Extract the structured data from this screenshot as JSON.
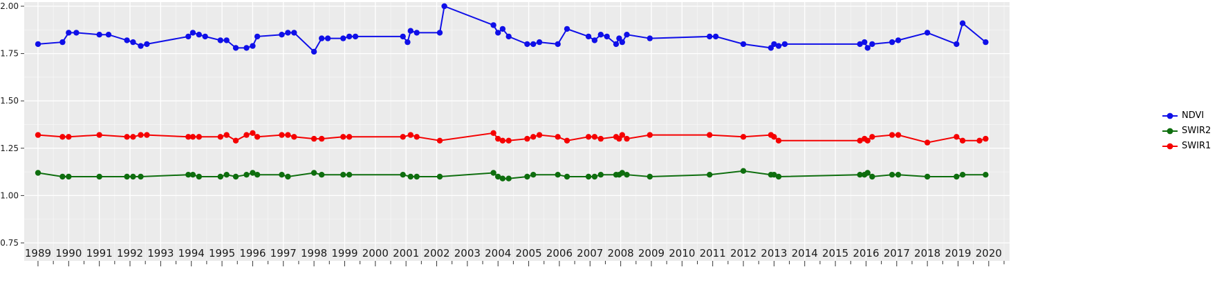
{
  "figure": {
    "title": "",
    "panel_bg": "#EBEBEB",
    "grid_major_color": "#FFFFFF",
    "grid_minor_color": "#FFFFFF",
    "axis_text_color": "#1a1a1a",
    "tick_color": "#333333"
  },
  "legend": {
    "items": [
      "NDVI",
      "SWIR2",
      "SWIR1"
    ]
  },
  "chart_data": {
    "type": "line",
    "title": "",
    "xlabel": "",
    "ylabel": "",
    "xlim": [
      1988.55,
      2020.68
    ],
    "ylim": [
      0.75,
      2.0
    ],
    "yticks": [
      0.75,
      1.0,
      1.25,
      1.5,
      1.75,
      2.0
    ],
    "ytick_labels": [
      "0.75",
      "1.00",
      "1.25",
      "1.50",
      "1.75",
      "2.00"
    ],
    "xticks": [
      1989,
      1990,
      1991,
      1992,
      1993,
      1994,
      1995,
      1996,
      1997,
      1998,
      1999,
      2000,
      2001,
      2002,
      2003,
      2004,
      2005,
      2006,
      2007,
      2008,
      2009,
      2010,
      2011,
      2012,
      2013,
      2014,
      2015,
      2016,
      2017,
      2018,
      2019,
      2020
    ],
    "grid": true,
    "legend_position": "right",
    "series": [
      {
        "name": "NDVI",
        "color": "#0F0FE8",
        "points": [
          [
            1989.0,
            1.8
          ],
          [
            1989.8,
            1.81
          ],
          [
            1990.0,
            1.86
          ],
          [
            1990.25,
            1.86
          ],
          [
            1991.0,
            1.85
          ],
          [
            1991.3,
            1.85
          ],
          [
            1991.9,
            1.82
          ],
          [
            1992.1,
            1.81
          ],
          [
            1992.35,
            1.79
          ],
          [
            1992.55,
            1.8
          ],
          [
            1993.9,
            1.84
          ],
          [
            1994.05,
            1.86
          ],
          [
            1994.25,
            1.85
          ],
          [
            1994.45,
            1.84
          ],
          [
            1994.95,
            1.82
          ],
          [
            1995.15,
            1.82
          ],
          [
            1995.45,
            1.78
          ],
          [
            1995.8,
            1.78
          ],
          [
            1996.0,
            1.79
          ],
          [
            1996.15,
            1.84
          ],
          [
            1996.95,
            1.85
          ],
          [
            1997.15,
            1.86
          ],
          [
            1997.35,
            1.86
          ],
          [
            1998.0,
            1.76
          ],
          [
            1998.25,
            1.83
          ],
          [
            1998.45,
            1.83
          ],
          [
            1998.95,
            1.83
          ],
          [
            1999.15,
            1.84
          ],
          [
            1999.35,
            1.84
          ],
          [
            2000.9,
            1.84
          ],
          [
            2001.05,
            1.81
          ],
          [
            2001.15,
            1.87
          ],
          [
            2001.35,
            1.86
          ],
          [
            2002.1,
            1.86
          ],
          [
            2002.25,
            2.0
          ],
          [
            2003.85,
            1.9
          ],
          [
            2004.0,
            1.86
          ],
          [
            2004.15,
            1.88
          ],
          [
            2004.35,
            1.84
          ],
          [
            2004.95,
            1.8
          ],
          [
            2005.15,
            1.8
          ],
          [
            2005.35,
            1.81
          ],
          [
            2005.95,
            1.8
          ],
          [
            2006.25,
            1.88
          ],
          [
            2006.95,
            1.84
          ],
          [
            2007.15,
            1.82
          ],
          [
            2007.35,
            1.85
          ],
          [
            2007.55,
            1.84
          ],
          [
            2007.85,
            1.8
          ],
          [
            2007.95,
            1.83
          ],
          [
            2008.05,
            1.81
          ],
          [
            2008.2,
            1.85
          ],
          [
            2008.95,
            1.83
          ],
          [
            2010.9,
            1.84
          ],
          [
            2011.1,
            1.84
          ],
          [
            2012.0,
            1.8
          ],
          [
            2012.9,
            1.78
          ],
          [
            2013.0,
            1.8
          ],
          [
            2013.15,
            1.79
          ],
          [
            2013.35,
            1.8
          ],
          [
            2015.8,
            1.8
          ],
          [
            2015.95,
            1.81
          ],
          [
            2016.05,
            1.78
          ],
          [
            2016.2,
            1.8
          ],
          [
            2016.85,
            1.81
          ],
          [
            2017.05,
            1.82
          ],
          [
            2018.0,
            1.86
          ],
          [
            2018.95,
            1.8
          ],
          [
            2019.15,
            1.91
          ],
          [
            2019.9,
            1.81
          ]
        ]
      },
      {
        "name": "SWIR2",
        "color": "#0E6E0E",
        "points": [
          [
            1989.0,
            1.12
          ],
          [
            1989.8,
            1.1
          ],
          [
            1990.0,
            1.1
          ],
          [
            1991.0,
            1.1
          ],
          [
            1991.9,
            1.1
          ],
          [
            1992.1,
            1.1
          ],
          [
            1992.35,
            1.1
          ],
          [
            1993.9,
            1.11
          ],
          [
            1994.05,
            1.11
          ],
          [
            1994.25,
            1.1
          ],
          [
            1994.95,
            1.1
          ],
          [
            1995.15,
            1.11
          ],
          [
            1995.45,
            1.1
          ],
          [
            1995.8,
            1.11
          ],
          [
            1996.0,
            1.12
          ],
          [
            1996.15,
            1.11
          ],
          [
            1996.95,
            1.11
          ],
          [
            1997.15,
            1.1
          ],
          [
            1998.0,
            1.12
          ],
          [
            1998.25,
            1.11
          ],
          [
            1998.95,
            1.11
          ],
          [
            1999.15,
            1.11
          ],
          [
            2000.9,
            1.11
          ],
          [
            2001.15,
            1.1
          ],
          [
            2001.35,
            1.1
          ],
          [
            2002.1,
            1.1
          ],
          [
            2003.85,
            1.12
          ],
          [
            2004.0,
            1.1
          ],
          [
            2004.15,
            1.09
          ],
          [
            2004.35,
            1.09
          ],
          [
            2004.95,
            1.1
          ],
          [
            2005.15,
            1.11
          ],
          [
            2005.95,
            1.11
          ],
          [
            2006.25,
            1.1
          ],
          [
            2006.95,
            1.1
          ],
          [
            2007.15,
            1.1
          ],
          [
            2007.35,
            1.11
          ],
          [
            2007.85,
            1.11
          ],
          [
            2007.95,
            1.11
          ],
          [
            2008.05,
            1.12
          ],
          [
            2008.2,
            1.11
          ],
          [
            2008.95,
            1.1
          ],
          [
            2010.9,
            1.11
          ],
          [
            2012.0,
            1.13
          ],
          [
            2012.9,
            1.11
          ],
          [
            2013.0,
            1.11
          ],
          [
            2013.15,
            1.1
          ],
          [
            2015.8,
            1.11
          ],
          [
            2015.95,
            1.11
          ],
          [
            2016.05,
            1.12
          ],
          [
            2016.2,
            1.1
          ],
          [
            2016.85,
            1.11
          ],
          [
            2017.05,
            1.11
          ],
          [
            2018.0,
            1.1
          ],
          [
            2018.95,
            1.1
          ],
          [
            2019.15,
            1.11
          ],
          [
            2019.9,
            1.11
          ]
        ]
      },
      {
        "name": "SWIR1",
        "color": "#F50000",
        "points": [
          [
            1989.0,
            1.32
          ],
          [
            1989.8,
            1.31
          ],
          [
            1990.0,
            1.31
          ],
          [
            1991.0,
            1.32
          ],
          [
            1991.9,
            1.31
          ],
          [
            1992.1,
            1.31
          ],
          [
            1992.35,
            1.32
          ],
          [
            1992.55,
            1.32
          ],
          [
            1993.9,
            1.31
          ],
          [
            1994.05,
            1.31
          ],
          [
            1994.25,
            1.31
          ],
          [
            1994.95,
            1.31
          ],
          [
            1995.15,
            1.32
          ],
          [
            1995.45,
            1.29
          ],
          [
            1995.8,
            1.32
          ],
          [
            1996.0,
            1.33
          ],
          [
            1996.15,
            1.31
          ],
          [
            1996.95,
            1.32
          ],
          [
            1997.15,
            1.32
          ],
          [
            1997.35,
            1.31
          ],
          [
            1998.0,
            1.3
          ],
          [
            1998.25,
            1.3
          ],
          [
            1998.95,
            1.31
          ],
          [
            1999.15,
            1.31
          ],
          [
            2000.9,
            1.31
          ],
          [
            2001.15,
            1.32
          ],
          [
            2001.35,
            1.31
          ],
          [
            2002.1,
            1.29
          ],
          [
            2003.85,
            1.33
          ],
          [
            2004.0,
            1.3
          ],
          [
            2004.15,
            1.29
          ],
          [
            2004.35,
            1.29
          ],
          [
            2004.95,
            1.3
          ],
          [
            2005.15,
            1.31
          ],
          [
            2005.35,
            1.32
          ],
          [
            2005.95,
            1.31
          ],
          [
            2006.25,
            1.29
          ],
          [
            2006.95,
            1.31
          ],
          [
            2007.15,
            1.31
          ],
          [
            2007.35,
            1.3
          ],
          [
            2007.85,
            1.31
          ],
          [
            2007.95,
            1.3
          ],
          [
            2008.05,
            1.32
          ],
          [
            2008.2,
            1.3
          ],
          [
            2008.95,
            1.32
          ],
          [
            2010.9,
            1.32
          ],
          [
            2012.0,
            1.31
          ],
          [
            2012.9,
            1.32
          ],
          [
            2013.0,
            1.31
          ],
          [
            2013.15,
            1.29
          ],
          [
            2015.8,
            1.29
          ],
          [
            2015.95,
            1.3
          ],
          [
            2016.05,
            1.29
          ],
          [
            2016.2,
            1.31
          ],
          [
            2016.85,
            1.32
          ],
          [
            2017.05,
            1.32
          ],
          [
            2018.0,
            1.28
          ],
          [
            2018.95,
            1.31
          ],
          [
            2019.15,
            1.29
          ],
          [
            2019.7,
            1.29
          ],
          [
            2019.9,
            1.3
          ]
        ]
      }
    ]
  }
}
